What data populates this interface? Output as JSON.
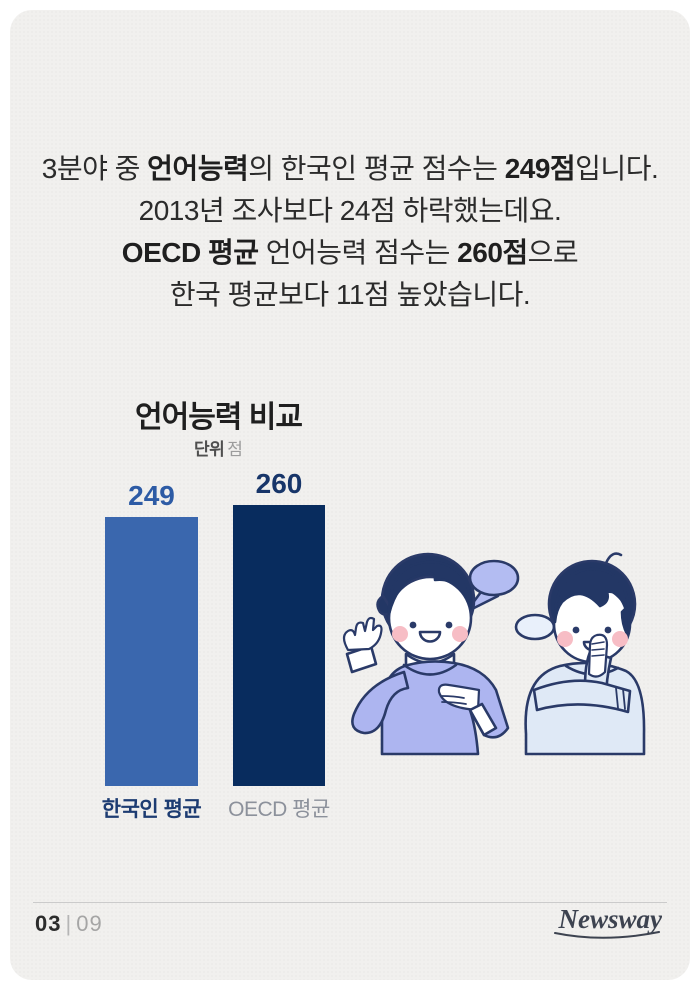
{
  "page": {
    "background_color": "#ffffff",
    "card_color": "#f1f0ee"
  },
  "intro": {
    "l1_1": "3분야 중 ",
    "l1_2": "언어능력",
    "l1_3": "의 한국인 평균 점수는 ",
    "l1_4": "249점",
    "l1_5": "입니다.",
    "l2": "2013년 조사보다 24점 하락했는데요.",
    "l3_1": "OECD 평균",
    "l3_2": " 언어능력 점수는 ",
    "l3_3": "260점",
    "l3_4": "으로",
    "l4": "한국 평균보다 11점 높았습니다."
  },
  "chart": {
    "title": "언어능력 비교",
    "unit_label": "단위",
    "unit_value": "점"
  },
  "chart_data": {
    "type": "bar",
    "title": "언어능력 비교",
    "unit": "점",
    "categories": [
      "한국인 평균",
      "OECD 평균"
    ],
    "values": [
      249,
      260
    ],
    "ylim": [
      0,
      260
    ],
    "grid": false,
    "legend": "none",
    "bar_colors": [
      "#3a67ae",
      "#082c5e"
    ],
    "value_label_colors": [
      "#2d5ba5",
      "#173569"
    ],
    "category_label_colors": [
      "#1d3c72",
      "#8c919b"
    ],
    "category_label_bold": [
      true,
      false
    ],
    "pixels_per_point": 1.08
  },
  "illustration": {
    "name": "two-people-talking",
    "outline_color": "#2a3a68",
    "hair_color": "#233765",
    "person1_shirt_color": "#adb5f0",
    "person2_shirt_color": "#dfe9f6",
    "bubble1_color": "#b3bcf2",
    "bubble2_color": "#e9f0fb",
    "cheek_color": "#f7bdc5"
  },
  "footer": {
    "page_current": "03",
    "page_divider": "|",
    "page_total": "09",
    "brand": "Newsway"
  }
}
